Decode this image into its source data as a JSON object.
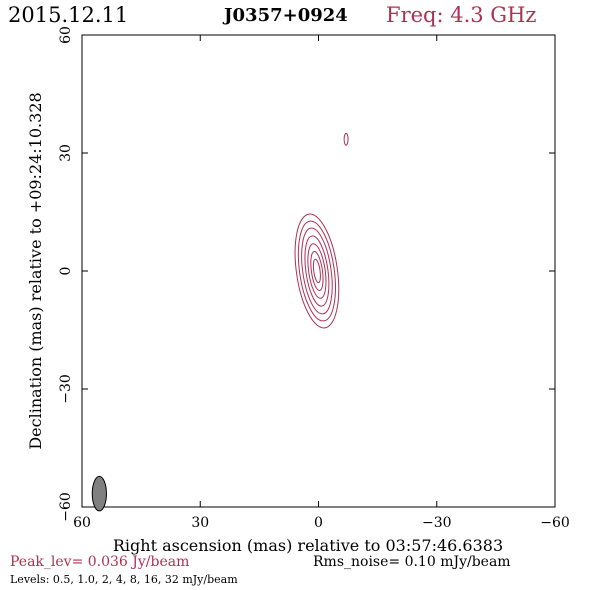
{
  "header": {
    "date": "2015.12.11",
    "source": "J0357+0924",
    "freq": "Freq: 4.3 GHz"
  },
  "footer": {
    "peak": "Peak_lev=  0.036 Jy/beam",
    "rms": "Rms_noise= 0.10 mJy/beam",
    "levels": "Levels: 0.5, 1.0,   2,   4,   8,  16,  32 mJy/beam"
  },
  "colors": {
    "accent": "#b03050",
    "axis": "#000000",
    "beam": "#808080"
  },
  "chart_data": {
    "type": "contour",
    "title": "",
    "xlabel": "Right ascension (mas) relative to 03:57:46.6383",
    "ylabel": "Declination (mas) relative to +09:24:10.328",
    "xlim": [
      60,
      -60
    ],
    "ylim": [
      -60,
      60
    ],
    "xticks": [
      60,
      30,
      0,
      -30,
      -60
    ],
    "yticks": [
      -60,
      -30,
      0,
      30,
      60
    ],
    "xtick_labels": [
      "60",
      "30",
      "0",
      "−30",
      "−60"
    ],
    "ytick_labels": [
      "−60",
      "−30",
      "0",
      "30",
      "60"
    ],
    "main_component": {
      "ra": 0.4,
      "dec": 0.0,
      "rings": [
        {
          "a": 5.2,
          "b": 14.6
        },
        {
          "a": 4.4,
          "b": 12.8
        },
        {
          "a": 3.6,
          "b": 11.0
        },
        {
          "a": 2.8,
          "b": 9.0
        },
        {
          "a": 2.1,
          "b": 7.0
        },
        {
          "a": 1.4,
          "b": 5.0
        },
        {
          "a": 0.8,
          "b": 3.0
        }
      ]
    },
    "secondary_component": {
      "ra": -7.0,
      "dec": 33.5,
      "a": 0.5,
      "b": 1.5
    },
    "beam": {
      "ra": 55.6,
      "dec": -56.6,
      "a": 1.8,
      "b": 4.4
    }
  }
}
